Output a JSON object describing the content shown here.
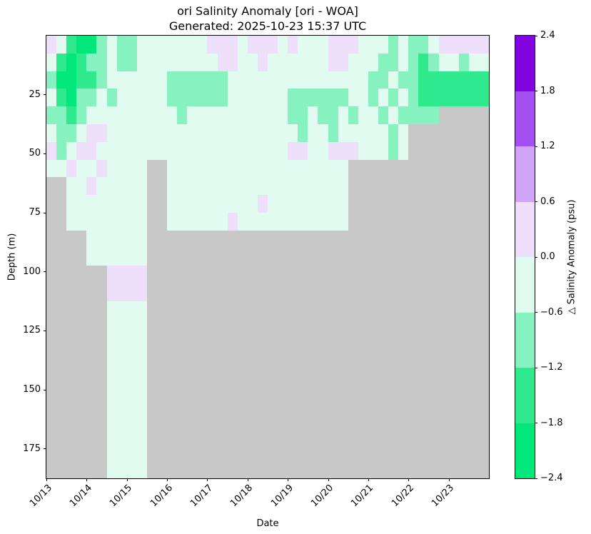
{
  "figure": {
    "title_line1": "ori Salinity Anomaly [ori - WOA]",
    "title_line2": "Generated: 2025-10-23 15:37 UTC"
  },
  "axes": {
    "xlabel": "Date",
    "ylabel": "Depth (m)",
    "x_tick_labels": [
      "10/13",
      "10/14",
      "10/15",
      "10/16",
      "10/17",
      "10/18",
      "10/19",
      "10/20",
      "10/21",
      "10/22",
      "10/23"
    ],
    "y_tick_labels": [
      "25",
      "50",
      "75",
      "100",
      "125",
      "150",
      "175"
    ],
    "y_tick_depths_m": [
      25,
      50,
      75,
      100,
      125,
      150,
      175
    ],
    "depth_axis_max_m": 187.5
  },
  "colorbar": {
    "label": "△ Salinity Anomaly (psu)",
    "tick_labels": [
      "2.4",
      "1.8",
      "1.2",
      "0.6",
      "0.0",
      "−0.6",
      "−1.2",
      "−1.8",
      "−2.4"
    ],
    "band_colors_top_to_bottom": [
      "#8204e0",
      "#a44ff2",
      "#d0a4f6",
      "#eee0fa",
      "#e2fbf0",
      "#86f2c0",
      "#2fe98f",
      "#00e87b"
    ]
  },
  "chart_data": {
    "type": "heatmap",
    "title": "ori Salinity Anomaly [ori - WOA]",
    "subtitle": "Generated: 2025-10-23 15:37 UTC",
    "xlabel": "Date",
    "ylabel": "Depth (m)",
    "x_days": [
      "10/13",
      "10/14",
      "10/15",
      "10/16",
      "10/17",
      "10/18",
      "10/19",
      "10/20",
      "10/21",
      "10/22",
      "10/23"
    ],
    "columns_per_day": 4,
    "n_columns": 44,
    "n_rows": 25,
    "row_depth_bin_m": 7.5,
    "depth_range_m": [
      0,
      187.5
    ],
    "value_range_psu": [
      -2.4,
      2.4
    ],
    "no_data_color": "#c8c8c8",
    "cell_value_bins_psu": {
      ".": null,
      "a": [
        -0.6,
        0.0
      ],
      "b": [
        -1.2,
        -0.6
      ],
      "c": [
        -1.8,
        -1.2
      ],
      "d": [
        -2.4,
        -1.8
      ],
      "p": [
        0.0,
        0.6
      ]
    },
    "cell_colors": {
      ".": "#c8c8c8",
      "a": "#e2fbf0",
      "b": "#86f2c0",
      "c": "#2fe98f",
      "d": "#00e87b",
      "p": "#eee0fa"
    },
    "grid_rows_top_to_bottom": [
      "pacddbabbaaaaaaapppapppapaaapppaaababbappppp",
      "acdcbbabbaaaaaaaappaapaaaaaappaaabbabcbaabaa",
      "bddccbaaaaaabbbbbbaaaaaaaaaaaaaabbabbccccccc",
      "acdbbabaaaaabbbbbbaaaaaabbbbbbaabababccccccc",
      "bbcbaaaaaaaaabaaaaaaaaaabbabbabaababbbb.....",
      "abbappaaaaaaaaaaaaaaaaaaabaabaaaaaba........",
      "pbappaaaaaaaaaaaaaaaaaaappaapppaaaba........",
      "aapaapaaaa..aaaaaaaaaaaaaaaaaa..............",
      "..aapaaaaa..aaaaaaaaaaaaaaaaaa..............",
      "..aaaaaaaa..aaaaaaaaapaaaaaaaa..............",
      "..aaaaaaaa..aaaaaapaaaaaaaaaaa..............",
      "....aaaaaa..................................",
      "....aaaaaa..................................",
      "......pppp..................................",
      "......pppp..................................",
      "......aaaa..................................",
      "......aaaa..................................",
      "......aaaa..................................",
      "......aaaa..................................",
      "......aaaa..................................",
      "......aaaa..................................",
      "......aaaa..................................",
      "......aaaa..................................",
      "......aaaa..................................",
      "......aaaa.................................."
    ]
  }
}
